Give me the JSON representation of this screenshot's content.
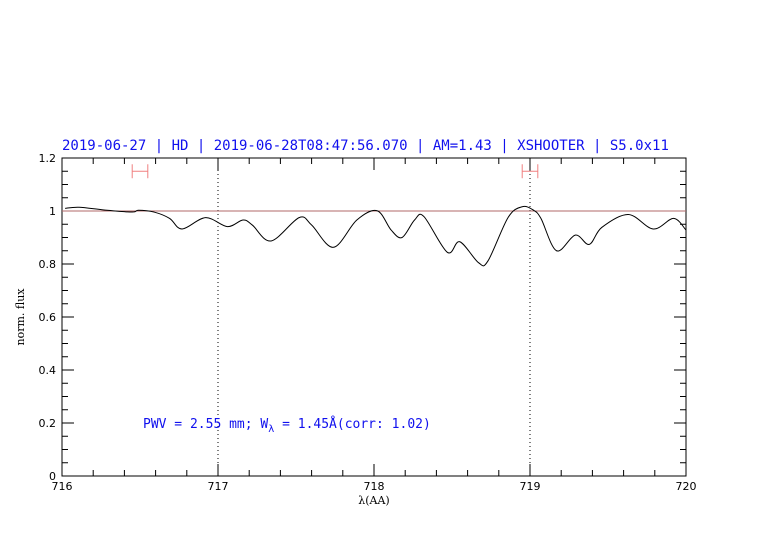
{
  "chart_data": {
    "type": "line",
    "title": "2019-06-27 | HD | 2019-06-28T08:47:56.070 | AM=1.43 | XSHOOTER | S5.0x11",
    "xlabel": "λ(AA)",
    "ylabel": "norm. flux",
    "xlim": [
      716,
      720
    ],
    "ylim": [
      0,
      1.2
    ],
    "x_ticks": [
      "716",
      "717",
      "718",
      "719",
      "720"
    ],
    "y_ticks": [
      "0",
      "0.2",
      "0.4",
      "0.6",
      "0.8",
      "1",
      "1.2"
    ],
    "annotation": {
      "pwv": "PWV = 2.55 mm; W",
      "sub": "λ",
      "rest": " = 1.45Å(corr: 1.02)"
    },
    "reference_line": {
      "y": 1,
      "color": "#b06a6a"
    },
    "vertical_markers": [
      717,
      719
    ],
    "error_bars": [
      {
        "x0": 716.45,
        "x1": 716.55,
        "y": 1.15
      },
      {
        "x0": 718.95,
        "x1": 719.05,
        "y": 1.15
      }
    ],
    "colors": {
      "text": "#1010ee",
      "error_bar": "#f08080",
      "line": "#000000"
    },
    "series": [
      {
        "x": [
          716.02,
          716.11,
          716.27,
          716.45,
          716.49,
          716.59,
          716.69,
          716.77,
          716.92,
          717.06,
          717.16,
          717.22,
          717.34,
          717.52,
          717.6,
          717.74,
          717.89,
          718.02,
          718.11,
          718.18,
          718.26,
          718.32,
          718.47,
          718.55,
          718.67,
          718.73,
          718.86,
          718.95,
          719.02,
          719.07,
          719.17,
          719.29,
          719.38,
          719.46,
          719.63,
          719.79,
          719.92,
          720.0
        ],
        "y": [
          1.01,
          1.014,
          1.004,
          0.996,
          1.003,
          0.996,
          0.972,
          0.932,
          0.975,
          0.941,
          0.966,
          0.947,
          0.887,
          0.975,
          0.947,
          0.863,
          0.966,
          1.001,
          0.928,
          0.9,
          0.966,
          0.979,
          0.844,
          0.884,
          0.805,
          0.811,
          0.976,
          1.016,
          1.004,
          0.972,
          0.85,
          0.909,
          0.874,
          0.938,
          0.987,
          0.932,
          0.972,
          0.928
        ]
      }
    ]
  }
}
